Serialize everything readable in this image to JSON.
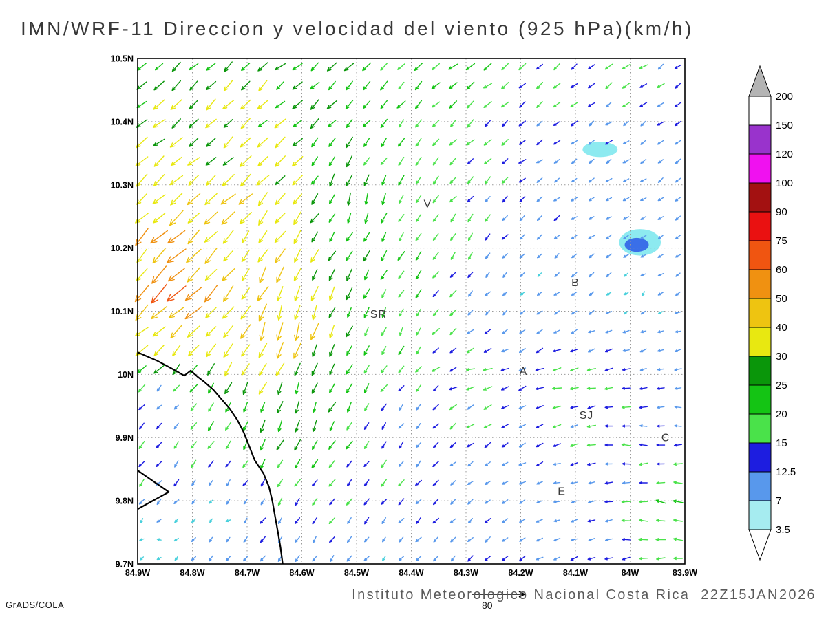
{
  "title": "IMN/WRF-11 Direccion y velocidad del viento (925 hPa)(km/h)",
  "footer": {
    "institute": "Instituto Meteorologico Nacional Costa Rica",
    "timestamp": "22Z15JAN2026",
    "credit": "GrADS/COLA",
    "reference_vector_label": "80"
  },
  "chart_data": {
    "type": "vector_field_map",
    "model": "IMN/WRF-11",
    "variable": "Direccion y velocidad del viento",
    "level": "925 hPa",
    "units": "km/h",
    "lon_range": [
      -84.9,
      -83.9
    ],
    "lat_range": [
      9.7,
      10.5
    ],
    "grid_interval_deg": 0.1,
    "lon_tick_labels": [
      "84.9W",
      "84.8W",
      "84.7W",
      "84.6W",
      "84.5W",
      "84.4W",
      "84.3W",
      "84.2W",
      "84.1W",
      "84W",
      "83.9W"
    ],
    "lat_tick_labels": [
      "10.5N",
      "10.4N",
      "10.3N",
      "10.2N",
      "10.1N",
      "10N",
      "9.9N",
      "9.8N",
      "9.7N"
    ],
    "colorbar": {
      "tick_labels_top_to_bottom": [
        "200",
        "150",
        "120",
        "100",
        "90",
        "75",
        "60",
        "50",
        "40",
        "30",
        "25",
        "20",
        "15",
        "12.5",
        "7",
        "3.5"
      ],
      "box_colors_top_to_bottom": [
        "#ffffff",
        "#9933cc",
        "#f011f0",
        "#a31111",
        "#ea1111",
        "#f05511",
        "#f09111",
        "#eec411",
        "#e8e811",
        "#0a960a",
        "#14c414",
        "#4ae24a",
        "#1d1de0",
        "#5898ec",
        "#a6ecf0"
      ],
      "above_color": "#b4b4b4",
      "below_color": "#ffffff"
    },
    "speed_levels_kmh": [
      3.5,
      7,
      12.5,
      15,
      20,
      25,
      30,
      40,
      50,
      60,
      75,
      90,
      100,
      120,
      150,
      200
    ],
    "arrow_speed_colors": [
      "#a63ae6",
      "#49d0dc",
      "#5898ec",
      "#1d1de0",
      "#4ae24a",
      "#14c414",
      "#0a960a",
      "#e8e811",
      "#eec411",
      "#f09111",
      "#f05511",
      "#ea1111",
      "#a31111",
      "#f011f0",
      "#9933cc",
      "#f2f2f2",
      "#b4b4b4"
    ],
    "arrow_grid": {
      "cols": 32,
      "rows": 27
    },
    "stations": [
      {
        "label": "V",
        "lon": -84.37,
        "lat": 10.27
      },
      {
        "label": "B",
        "lon": -84.1,
        "lat": 10.145
      },
      {
        "label": "SR",
        "lon": -84.46,
        "lat": 10.095
      },
      {
        "label": "A",
        "lon": -84.195,
        "lat": 10.005
      },
      {
        "label": "SJ",
        "lon": -84.08,
        "lat": 9.935
      },
      {
        "label": "C",
        "lon": -83.935,
        "lat": 9.9
      },
      {
        "label": "E",
        "lon": -84.125,
        "lat": 9.815
      }
    ],
    "shaded_patches": [
      {
        "lon": -84.055,
        "lat": 10.356,
        "rx_deg": 0.032,
        "ry_deg": 0.012,
        "color": "#8deaf0"
      },
      {
        "lon": -83.982,
        "lat": 10.209,
        "rx_deg": 0.038,
        "ry_deg": 0.021,
        "color": "#8deaf0"
      },
      {
        "lon": -83.988,
        "lat": 10.205,
        "rx_deg": 0.022,
        "ry_deg": 0.011,
        "color": "#3a6fe8"
      }
    ],
    "coastline": [
      [
        -84.9,
        10.035
      ],
      [
        -84.865,
        10.022
      ],
      [
        -84.835,
        10.008
      ],
      [
        -84.815,
        9.998
      ],
      [
        -84.803,
        10.006
      ],
      [
        -84.79,
        9.996
      ],
      [
        -84.778,
        9.988
      ],
      [
        -84.762,
        9.976
      ],
      [
        -84.748,
        9.962
      ],
      [
        -84.732,
        9.946
      ],
      [
        -84.718,
        9.928
      ],
      [
        -84.706,
        9.908
      ],
      [
        -84.696,
        9.886
      ],
      [
        -84.686,
        9.864
      ],
      [
        -84.67,
        9.843
      ],
      [
        -84.66,
        9.822
      ],
      [
        -84.654,
        9.8
      ],
      [
        -84.649,
        9.776
      ],
      [
        -84.644,
        9.752
      ],
      [
        -84.639,
        9.726
      ],
      [
        -84.635,
        9.7
      ]
    ],
    "peninsula": [
      [
        -84.9,
        9.848
      ],
      [
        -84.843,
        9.814
      ],
      [
        -84.9,
        9.787
      ]
    ],
    "wind_samples_format": [
      "lon",
      "lat",
      "u_kmh_east",
      "v_kmh_north"
    ],
    "wind_samples": [
      [
        -84.9,
        10.5,
        -16,
        -12
      ],
      [
        -84.6,
        10.5,
        -20,
        -15
      ],
      [
        -84.3,
        10.5,
        -17,
        -12
      ],
      [
        -84.0,
        10.48,
        -13,
        -9
      ],
      [
        -83.9,
        10.42,
        -10,
        -7
      ],
      [
        -84.85,
        10.38,
        -27,
        -21
      ],
      [
        -84.7,
        10.33,
        -25,
        -20
      ],
      [
        -84.83,
        10.13,
        -50,
        -45
      ],
      [
        -84.82,
        10.2,
        -44,
        -40
      ],
      [
        -84.88,
        10.08,
        -32,
        -28
      ],
      [
        -84.75,
        10.26,
        -30,
        -26
      ],
      [
        -84.65,
        10.08,
        -12,
        -42
      ],
      [
        -84.62,
        10.07,
        -14,
        -48
      ],
      [
        -84.62,
        9.94,
        -8,
        -30
      ],
      [
        -84.68,
        10.18,
        -18,
        -32
      ],
      [
        -84.5,
        10.28,
        -4,
        -25
      ],
      [
        -84.45,
        10.08,
        -5,
        -18
      ],
      [
        -84.35,
        10.22,
        -8,
        -16
      ],
      [
        -84.3,
        10.33,
        -12,
        -10
      ],
      [
        -84.15,
        10.34,
        -9,
        -4
      ],
      [
        -83.95,
        10.33,
        -7,
        -5
      ],
      [
        -84.18,
        10.15,
        -3,
        -3
      ],
      [
        -84.0,
        10.12,
        -3,
        -2
      ],
      [
        -83.94,
        10.2,
        -6,
        -4
      ],
      [
        -84.05,
        10.28,
        -8,
        -4
      ],
      [
        -84.22,
        10.1,
        -4,
        -5
      ],
      [
        -84.28,
        10.0,
        -20,
        -1
      ],
      [
        -84.1,
        9.99,
        -19,
        -2
      ],
      [
        -83.92,
        9.95,
        -13,
        1
      ],
      [
        -84.02,
        9.9,
        -16,
        2
      ],
      [
        -83.93,
        9.79,
        -21,
        6
      ],
      [
        -84.12,
        9.8,
        -8,
        -1
      ],
      [
        -84.3,
        9.82,
        -7,
        -6
      ],
      [
        -84.48,
        9.8,
        -9,
        -12
      ],
      [
        -84.45,
        9.72,
        -4,
        -4
      ],
      [
        -84.6,
        9.75,
        -6,
        -10
      ],
      [
        -84.75,
        9.78,
        -2,
        -2
      ],
      [
        -84.87,
        9.73,
        -2.5,
        1
      ],
      [
        -84.85,
        9.95,
        -3,
        -2.5
      ],
      [
        -84.4,
        9.93,
        -6,
        -8
      ],
      [
        -83.91,
        10.05,
        -8,
        -2
      ]
    ]
  }
}
